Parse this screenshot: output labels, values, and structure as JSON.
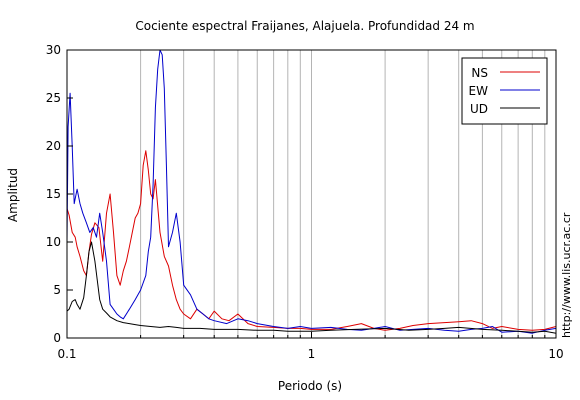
{
  "chart_data": {
    "type": "line",
    "title": "Cociente espectral Fraijanes, Alajuela. Profundidad 24 m",
    "xlabel": "Periodo (s)",
    "ylabel": "Amplitud",
    "xscale": "log",
    "xlim": [
      0.1,
      10
    ],
    "ylim": [
      0,
      30
    ],
    "xticks": [
      0.1,
      1,
      10
    ],
    "xtick_labels": [
      "0.1",
      "1",
      "10"
    ],
    "yticks": [
      0,
      5,
      10,
      15,
      20,
      25,
      30
    ],
    "ytick_labels": [
      "0",
      "5",
      "10",
      "15",
      "20",
      "25",
      "30"
    ],
    "grid": {
      "x_minor_vertical": true,
      "y_horizontal": false
    },
    "legend": {
      "position": "top-right",
      "entries": [
        "NS",
        "EW",
        "UD"
      ]
    },
    "side_text": "http://www.lis.ucr.ac.cr",
    "series": [
      {
        "name": "NS",
        "color": "#dd0000",
        "x": [
          0.1,
          0.102,
          0.105,
          0.108,
          0.11,
          0.113,
          0.117,
          0.12,
          0.123,
          0.126,
          0.13,
          0.135,
          0.14,
          0.145,
          0.15,
          0.155,
          0.16,
          0.165,
          0.17,
          0.175,
          0.18,
          0.185,
          0.19,
          0.195,
          0.2,
          0.205,
          0.21,
          0.215,
          0.22,
          0.225,
          0.23,
          0.24,
          0.25,
          0.26,
          0.27,
          0.28,
          0.29,
          0.3,
          0.32,
          0.34,
          0.36,
          0.38,
          0.4,
          0.43,
          0.46,
          0.5,
          0.55,
          0.6,
          0.7,
          0.8,
          0.9,
          1.0,
          1.2,
          1.4,
          1.6,
          1.8,
          2.0,
          2.3,
          2.6,
          3.0,
          3.5,
          4.0,
          4.5,
          5.0,
          5.5,
          6.0,
          7.0,
          8.0,
          9.0,
          10.0
        ],
        "y": [
          13.5,
          12.8,
          11.0,
          10.5,
          9.5,
          8.5,
          7.0,
          6.5,
          9.0,
          10.8,
          12.0,
          11.5,
          8.0,
          13.0,
          15.0,
          11.0,
          6.5,
          5.5,
          7.0,
          8.0,
          9.5,
          11.0,
          12.5,
          13.0,
          14.0,
          18.0,
          19.5,
          17.5,
          15.0,
          14.5,
          16.5,
          11.0,
          8.5,
          7.5,
          5.5,
          4.0,
          3.0,
          2.5,
          2.0,
          3.0,
          2.5,
          2.0,
          2.8,
          2.0,
          1.8,
          2.5,
          1.5,
          1.2,
          1.1,
          1.0,
          1.0,
          0.9,
          0.9,
          1.2,
          1.5,
          1.0,
          0.8,
          1.0,
          1.3,
          1.5,
          1.6,
          1.7,
          1.8,
          1.5,
          1.0,
          1.2,
          0.9,
          0.8,
          0.9,
          1.2
        ]
      },
      {
        "name": "EW",
        "color": "#0000cc",
        "x": [
          0.1,
          0.101,
          0.103,
          0.105,
          0.107,
          0.11,
          0.113,
          0.116,
          0.12,
          0.124,
          0.128,
          0.132,
          0.136,
          0.14,
          0.145,
          0.15,
          0.155,
          0.16,
          0.165,
          0.17,
          0.18,
          0.19,
          0.2,
          0.21,
          0.215,
          0.22,
          0.225,
          0.23,
          0.235,
          0.24,
          0.245,
          0.25,
          0.255,
          0.26,
          0.27,
          0.28,
          0.29,
          0.3,
          0.32,
          0.34,
          0.36,
          0.38,
          0.4,
          0.45,
          0.5,
          0.55,
          0.6,
          0.7,
          0.8,
          0.9,
          1.0,
          1.2,
          1.4,
          1.6,
          1.8,
          2.0,
          2.3,
          2.6,
          3.0,
          3.5,
          4.0,
          4.5,
          5.0,
          5.5,
          6.0,
          7.0,
          8.0,
          9.0,
          10.0
        ],
        "y": [
          10.0,
          22.0,
          25.5,
          20.0,
          14.0,
          15.5,
          14.0,
          13.0,
          12.0,
          11.0,
          11.5,
          10.5,
          13.0,
          11.0,
          8.0,
          3.5,
          3.0,
          2.5,
          2.2,
          2.0,
          3.0,
          4.0,
          5.0,
          6.5,
          9.0,
          10.5,
          16.0,
          24.0,
          28.0,
          30.0,
          29.5,
          26.0,
          18.0,
          9.5,
          11.0,
          13.0,
          10.0,
          5.5,
          4.5,
          3.0,
          2.5,
          2.0,
          1.8,
          1.5,
          2.0,
          1.8,
          1.5,
          1.2,
          1.0,
          1.2,
          1.0,
          1.1,
          0.9,
          0.8,
          1.0,
          1.2,
          0.8,
          0.9,
          1.0,
          0.8,
          0.7,
          0.9,
          1.0,
          1.2,
          0.6,
          0.7,
          0.5,
          0.8,
          1.0
        ]
      },
      {
        "name": "UD",
        "color": "#000000",
        "x": [
          0.1,
          0.102,
          0.105,
          0.108,
          0.11,
          0.113,
          0.117,
          0.12,
          0.123,
          0.126,
          0.13,
          0.133,
          0.136,
          0.14,
          0.145,
          0.15,
          0.155,
          0.16,
          0.17,
          0.18,
          0.19,
          0.2,
          0.22,
          0.24,
          0.26,
          0.28,
          0.3,
          0.35,
          0.4,
          0.5,
          0.6,
          0.7,
          0.8,
          1.0,
          1.2,
          1.5,
          2.0,
          2.5,
          3.0,
          3.5,
          4.0,
          5.0,
          6.0,
          7.0,
          8.0,
          9.0,
          10.0
        ],
        "y": [
          2.8,
          3.0,
          3.8,
          4.0,
          3.5,
          3.0,
          4.2,
          6.5,
          9.0,
          10.0,
          8.0,
          6.0,
          4.0,
          3.0,
          2.6,
          2.2,
          2.0,
          1.8,
          1.6,
          1.5,
          1.4,
          1.3,
          1.2,
          1.1,
          1.2,
          1.1,
          1.0,
          1.0,
          0.9,
          0.9,
          0.8,
          0.8,
          0.7,
          0.7,
          0.8,
          0.9,
          1.0,
          0.8,
          0.9,
          1.0,
          1.1,
          0.9,
          0.8,
          0.7,
          0.6,
          0.7,
          0.5
        ]
      }
    ]
  }
}
